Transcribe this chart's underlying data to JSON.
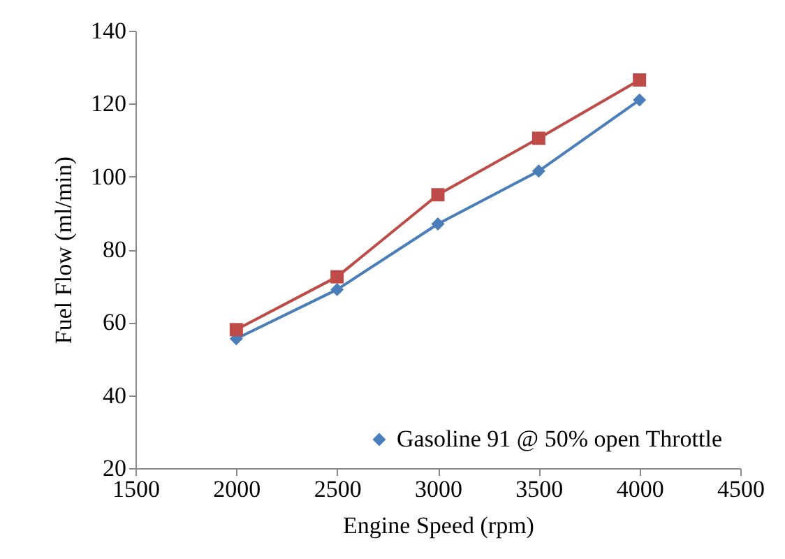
{
  "chart_data": {
    "type": "line",
    "xlabel": "Engine Speed (rpm)",
    "ylabel": "Fuel Flow (ml/min)",
    "x": [
      2000,
      2500,
      3000,
      3500,
      4000
    ],
    "series": [
      {
        "name": "Gasoline 91 @ 50% open Throttle",
        "color": "#4a7ebb",
        "marker": "diamond",
        "values": [
          55.5,
          69,
          87,
          101.5,
          121
        ]
      },
      {
        "color": "#be4b48",
        "marker": "square",
        "values": [
          58,
          72.5,
          95,
          110.5,
          126.5
        ]
      }
    ],
    "xlim": [
      1500,
      4500
    ],
    "xticks": [
      1500,
      2000,
      2500,
      3000,
      3500,
      4000,
      4500
    ],
    "ylim": [
      20,
      140
    ],
    "yticks": [
      20,
      40,
      60,
      80,
      100,
      120,
      140
    ],
    "legend": "bottom right"
  }
}
